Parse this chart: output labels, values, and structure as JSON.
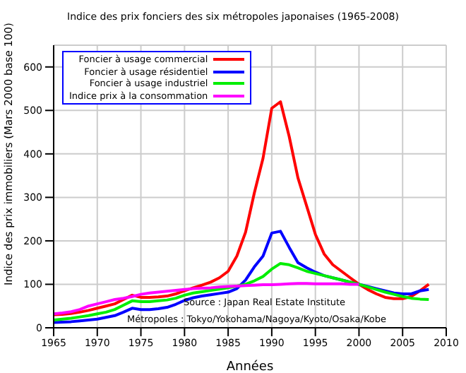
{
  "chart_data": {
    "type": "line",
    "title": "Indice des prix fonciers des six métropoles japonaises (1965-2008)",
    "xlabel": "Années",
    "ylabel": "Indice des prix immobiliers (Mars 2000 base 100)",
    "x": [
      1965,
      1966,
      1967,
      1968,
      1969,
      1970,
      1971,
      1972,
      1973,
      1974,
      1975,
      1976,
      1977,
      1978,
      1979,
      1980,
      1981,
      1982,
      1983,
      1984,
      1985,
      1986,
      1987,
      1988,
      1989,
      1990,
      1991,
      1992,
      1993,
      1994,
      1995,
      1996,
      1997,
      1998,
      1999,
      2000,
      2001,
      2002,
      2003,
      2004,
      2005,
      2006,
      2007,
      2008
    ],
    "series": [
      {
        "name": "Foncier à usage commercial",
        "color": "#ff0000",
        "values": [
          30,
          31,
          33,
          36,
          40,
          45,
          50,
          55,
          65,
          75,
          70,
          70,
          71,
          73,
          78,
          85,
          92,
          98,
          105,
          115,
          130,
          165,
          220,
          310,
          390,
          505,
          520,
          440,
          345,
          280,
          215,
          170,
          145,
          130,
          115,
          100,
          88,
          78,
          70,
          67,
          67,
          72,
          85,
          100
        ]
      },
      {
        "name": "Foncier à usage résidentiel",
        "color": "#0000ff",
        "values": [
          12,
          13,
          14,
          16,
          18,
          20,
          24,
          28,
          36,
          45,
          42,
          42,
          44,
          47,
          54,
          63,
          69,
          73,
          76,
          79,
          82,
          90,
          110,
          140,
          165,
          218,
          222,
          185,
          150,
          138,
          128,
          120,
          115,
          110,
          105,
          100,
          95,
          90,
          85,
          80,
          78,
          78,
          85,
          88
        ]
      },
      {
        "name": "Foncier à usage industriel",
        "color": "#00ee00",
        "values": [
          18,
          20,
          22,
          25,
          28,
          32,
          36,
          42,
          52,
          62,
          60,
          60,
          62,
          64,
          68,
          75,
          80,
          83,
          86,
          89,
          92,
          96,
          100,
          108,
          118,
          135,
          148,
          145,
          138,
          130,
          125,
          120,
          115,
          110,
          105,
          100,
          94,
          88,
          82,
          77,
          72,
          68,
          66,
          65
        ]
      },
      {
        "name": "Indice prix à la consommation",
        "color": "#ff00ff",
        "values": [
          32,
          34,
          37,
          42,
          50,
          55,
          60,
          65,
          68,
          72,
          77,
          80,
          82,
          84,
          86,
          88,
          90,
          91,
          92,
          94,
          95,
          96,
          97,
          98,
          99,
          99,
          100,
          101,
          102,
          102,
          101,
          101,
          101,
          101,
          100,
          100,
          null,
          null,
          null,
          null,
          null,
          null,
          null,
          null
        ]
      }
    ],
    "xlim": [
      1965,
      2010
    ],
    "xticks": [
      1965,
      1970,
      1975,
      1980,
      1985,
      1990,
      1995,
      2000,
      2005,
      2010
    ],
    "ylim": [
      0,
      650
    ],
    "yticks": [
      0,
      100,
      200,
      300,
      400,
      500,
      600
    ],
    "grid": true,
    "legend": "top left",
    "marker": "none",
    "line_style": "solid",
    "annotations": [
      "Source : Japan Real Estate Institute",
      "Métropoles : Tokyo/Yokohama/Nagoya/Kyoto/Osaka/Kobe"
    ]
  }
}
